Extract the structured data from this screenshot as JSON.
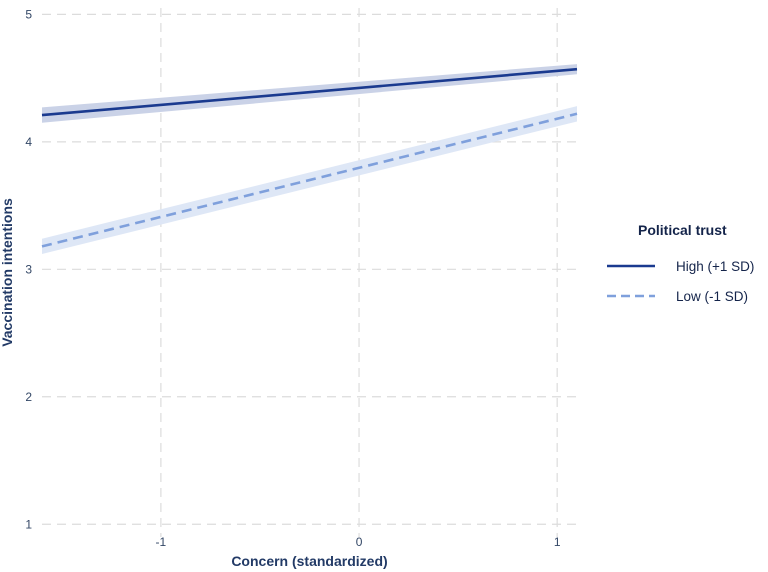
{
  "chart_data": {
    "type": "line",
    "xlabel": "Concern (standardized)",
    "ylabel": "Vaccination intentions",
    "xlim": [
      -1.6,
      1.1
    ],
    "ylim": [
      0.9,
      5.05
    ],
    "x_ticks": [
      -1,
      0,
      1
    ],
    "y_ticks": [
      1,
      2,
      3,
      4,
      5
    ],
    "grid": true,
    "grid_style": "dashed",
    "legend": {
      "title": "Political trust",
      "position": "right"
    },
    "series": [
      {
        "name": "High (+1 SD)",
        "x": [
          -1.6,
          1.1
        ],
        "y": [
          4.21,
          4.57
        ],
        "ci_lower": [
          4.15,
          4.53
        ],
        "ci_upper": [
          4.27,
          4.61
        ],
        "color": "#1a3a8f",
        "line_style": "solid",
        "band_color": "#c7d0e6"
      },
      {
        "name": "Low (-1 SD)",
        "x": [
          -1.6,
          1.1
        ],
        "y": [
          3.18,
          4.22
        ],
        "ci_lower": [
          3.12,
          4.16
        ],
        "ci_upper": [
          3.24,
          4.28
        ],
        "color": "#7fa0dc",
        "line_style": "dashed",
        "band_color": "#dce6f6"
      }
    ]
  }
}
